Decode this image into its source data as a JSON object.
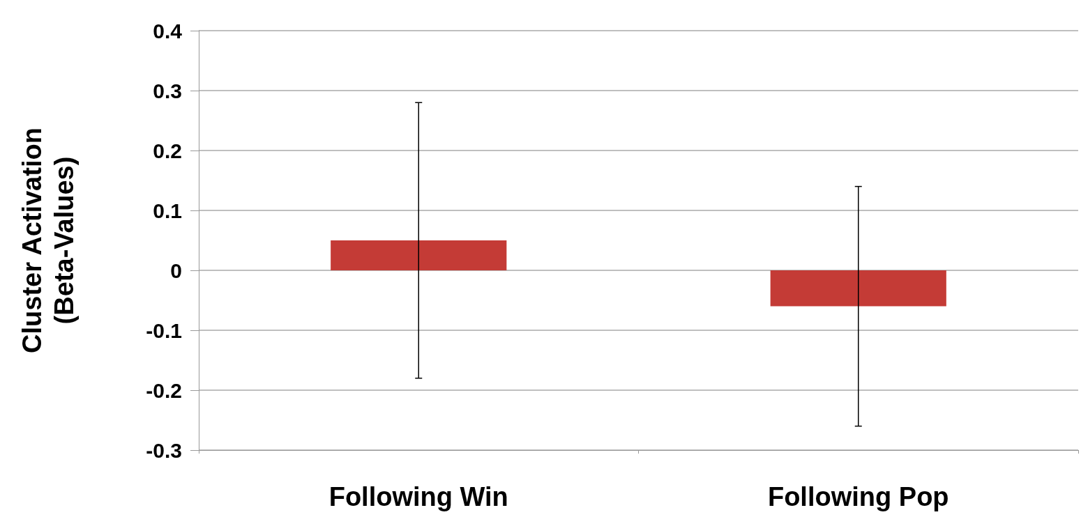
{
  "chart_data": {
    "type": "bar",
    "ylabel": "Cluster Activation\n(Beta-Values)",
    "categories": [
      "Following Win",
      "Following Pop"
    ],
    "values": [
      0.05,
      -0.06
    ],
    "errors": [
      0.23,
      0.2
    ],
    "color": "#c43b36",
    "ylim": [
      -0.3,
      0.4
    ],
    "yticks": [
      -0.3,
      -0.2,
      -0.1,
      0,
      0.1,
      0.2,
      0.3,
      0.4
    ],
    "grid": "y",
    "legend": false
  }
}
